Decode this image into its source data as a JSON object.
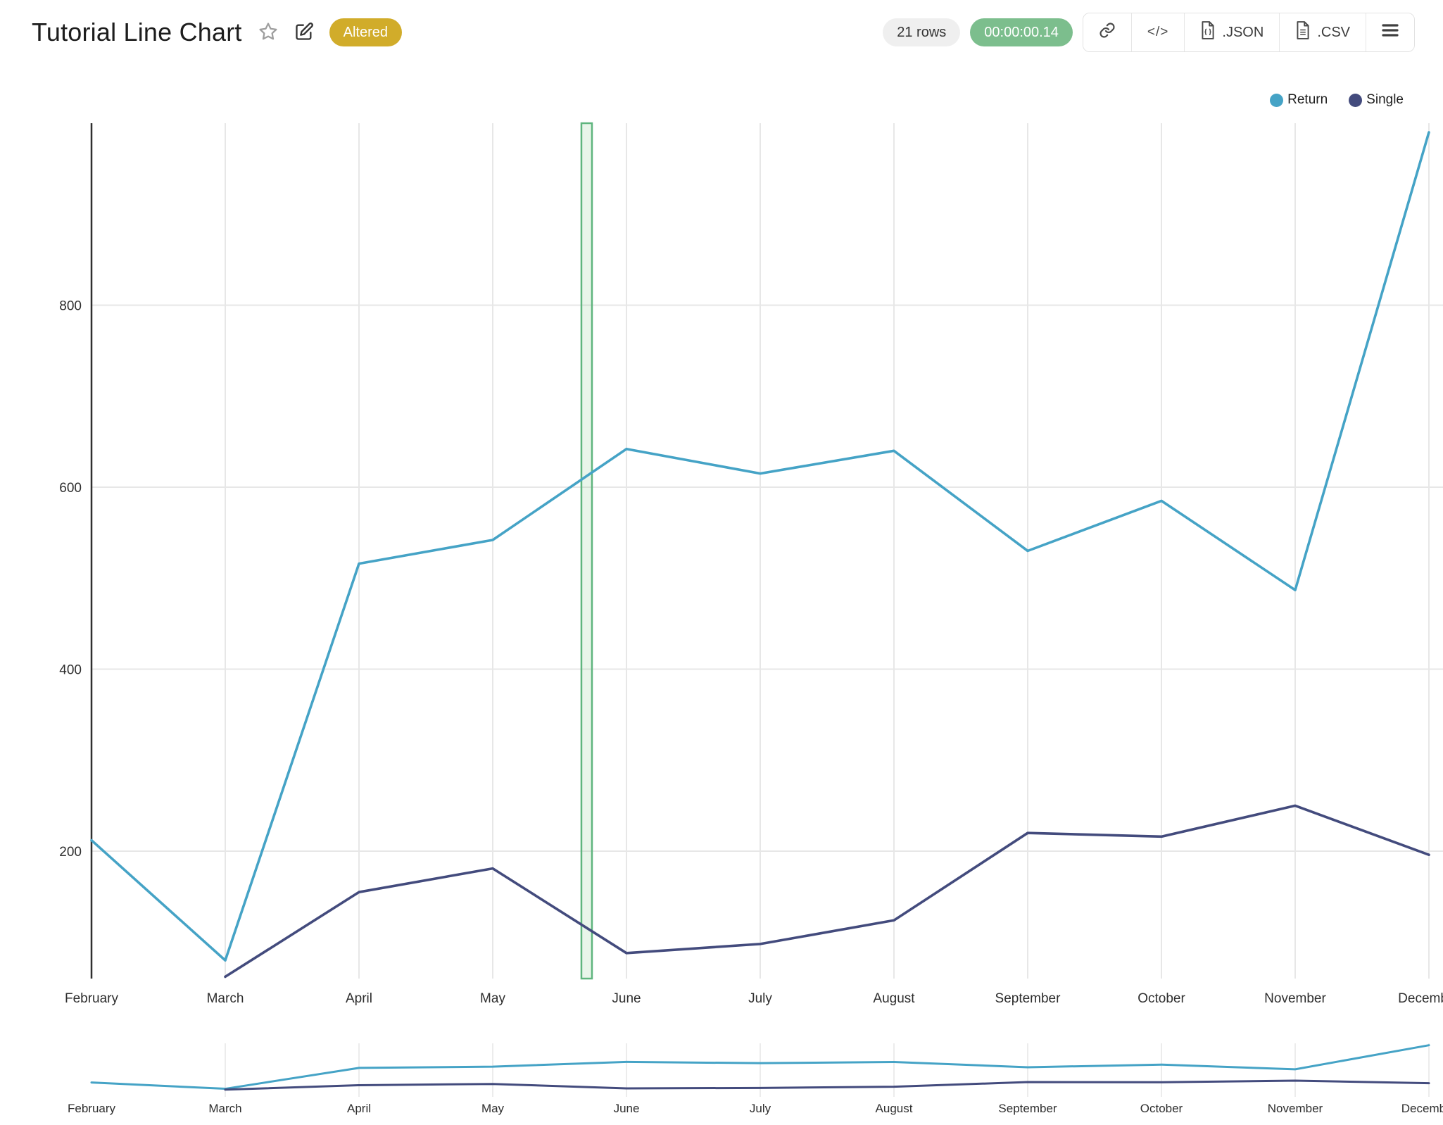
{
  "header": {
    "title": "Tutorial Line Chart",
    "altered_badge": "Altered",
    "rows_badge": "21 rows",
    "timer_badge": "00:00:00.14",
    "buttons": {
      "code_glyph": "</>",
      "json_label": ".JSON",
      "csv_label": ".CSV"
    },
    "colors": {
      "altered_bg": "#D1AC2A",
      "timer_bg": "#7CBE8D",
      "rows_bg": "#EFEFEF"
    }
  },
  "legend": [
    {
      "label": "Return",
      "color": "#45A3C6"
    },
    {
      "label": "Single",
      "color": "#434B7D"
    }
  ],
  "chart_data": {
    "type": "line",
    "title": "Tutorial Line Chart",
    "categories": [
      "February",
      "March",
      "April",
      "May",
      "June",
      "July",
      "August",
      "September",
      "October",
      "November",
      "December"
    ],
    "series": [
      {
        "name": "Return",
        "color": "#45A3C6",
        "values": [
          212,
          80,
          516,
          542,
          642,
          615,
          640,
          530,
          585,
          487,
          990
        ]
      },
      {
        "name": "Single",
        "color": "#434B7D",
        "values": [
          null,
          62,
          155,
          181,
          88,
          98,
          124,
          220,
          216,
          250,
          196
        ]
      }
    ],
    "xlabel": "",
    "ylabel": "",
    "yticks": [
      200,
      400,
      600,
      800
    ],
    "ylim": [
      60,
      1000
    ],
    "grid": true,
    "legend_position": "top-right",
    "axis_color": "#2F2F2F",
    "gridline_color": "#E7E7E7",
    "highlight_band": {
      "between": [
        "May",
        "June"
      ],
      "start_frac": 0.663,
      "end_frac": 0.742,
      "fill": "rgba(102,187,106,0.14)",
      "border": "#5FB57E"
    },
    "overview": {
      "shown": true,
      "ylim": [
        0,
        1000
      ]
    }
  }
}
